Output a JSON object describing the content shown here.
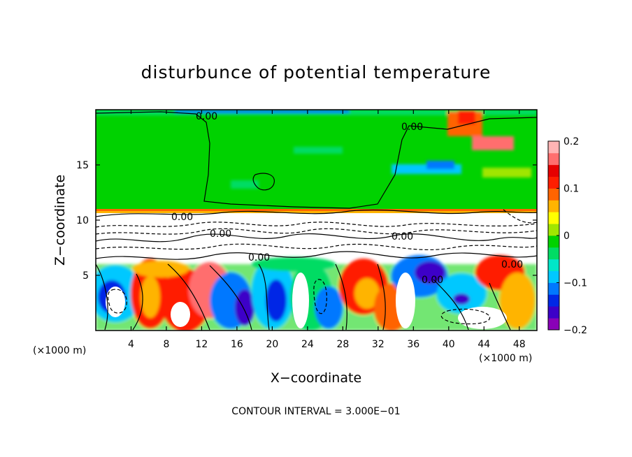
{
  "chart_data": {
    "type": "heatmap",
    "title": "disturbunce of potential temperature",
    "xlabel": "X−coordinate",
    "ylabel": "Z−coordinate",
    "x_unit_left": "(×1000 m)",
    "x_unit_right": "(×1000 m)",
    "footer": "CONTOUR INTERVAL = 3.000E−01",
    "xlim": [
      0,
      50
    ],
    "ylim": [
      0,
      20
    ],
    "x_ticks": [
      4,
      8,
      12,
      16,
      20,
      24,
      28,
      32,
      36,
      40,
      44,
      48
    ],
    "x_tick_labels": [
      "4",
      "8",
      "12",
      "16",
      "20",
      "24",
      "28",
      "32",
      "36",
      "40",
      "44",
      "48"
    ],
    "y_ticks": [
      5,
      10,
      15
    ],
    "y_tick_labels": [
      "5",
      "10",
      "15"
    ],
    "colorbar": {
      "range": [
        -0.2,
        0.2
      ],
      "tick_values": [
        0.2,
        0.1,
        0,
        -0.1,
        -0.2
      ],
      "tick_labels": [
        "0.2",
        "0.1",
        "0",
        "−0.1",
        "−0.2"
      ],
      "colors": [
        "#8a00b8",
        "#3c00c8",
        "#0028e6",
        "#0078ff",
        "#00c8ff",
        "#00e6c8",
        "#00dc64",
        "#00d200",
        "#a0e600",
        "#ffff00",
        "#ffb400",
        "#ff6400",
        "#ff1e00",
        "#e60000",
        "#ff6e6e",
        "#ffb4b4"
      ]
    },
    "contour_labels": [
      {
        "text": "0.00",
        "x": 13.5,
        "y": 19.1
      },
      {
        "text": "0.00",
        "x": 36.5,
        "y": 18.2
      },
      {
        "text": "0.00",
        "x": 9.8,
        "y": 10.1
      },
      {
        "text": "0.00",
        "x": 14.5,
        "y": 8.6
      },
      {
        "text": "0.00",
        "x": 19.0,
        "y": 6.9
      },
      {
        "text": "0.00",
        "x": 34.0,
        "y": 8.6
      },
      {
        "text": "0.00",
        "x": 37.5,
        "y": 4.5
      },
      {
        "text": "0.00",
        "x": 46.5,
        "y": 5.9
      }
    ]
  }
}
